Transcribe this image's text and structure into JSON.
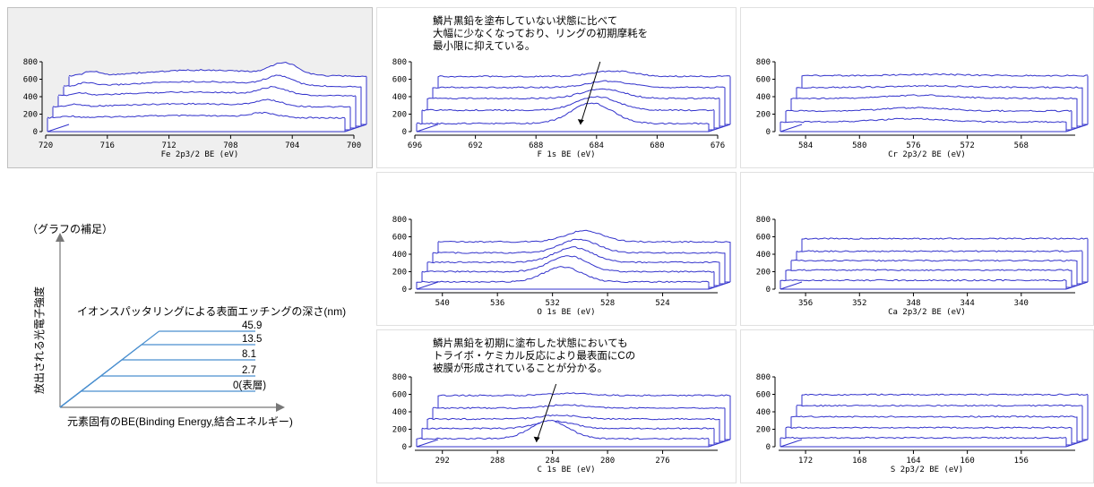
{
  "colors": {
    "line": "#3333cc",
    "axis": "#000000",
    "panel_bg": "#efefef",
    "panel_border": "#c0c0c0",
    "guide_line": "#4a8fcf",
    "guide_axis": "#777777"
  },
  "y_ticks": [
    "800",
    "600",
    "400",
    "200",
    "0"
  ],
  "chart_data": [
    {
      "type": "line",
      "id": "fe",
      "xlabel": "Fe 2p3/2  BE (eV)",
      "x_ticks": [
        "720",
        "716",
        "712",
        "708",
        "704",
        "700"
      ],
      "xlim": [
        720,
        700
      ],
      "ylim": [
        0,
        800
      ],
      "peak": 705.5,
      "base": [
        150,
        290,
        430,
        550,
        680
      ],
      "amp": [
        55,
        75,
        95,
        115,
        145
      ],
      "shape": "fe",
      "annotation": []
    },
    {
      "type": "line",
      "id": "f1s",
      "xlabel": "F 1s  BE (eV)",
      "x_ticks": [
        "696",
        "692",
        "688",
        "684",
        "680",
        "676"
      ],
      "xlim": [
        696,
        676
      ],
      "ylim": [
        0,
        800
      ],
      "peak": 684,
      "base": [
        80,
        250,
        400,
        540,
        680
      ],
      "amp": [
        260,
        170,
        120,
        80,
        70
      ],
      "shape": "peak",
      "annotation": [
        "鱗片黒鉛を塗布していない状態に比べて",
        "大幅に少なくなっており、リングの初期摩耗を",
        "最小限に抑えている。"
      ]
    },
    {
      "type": "line",
      "id": "cr",
      "xlabel": "Cr 2p3/2  BE (eV)",
      "x_ticks": [
        "584",
        "580",
        "576",
        "572",
        "568"
      ],
      "xlim": [
        586,
        564
      ],
      "ylim": [
        0,
        800
      ],
      "peak": 576,
      "base": [
        100,
        240,
        400,
        540,
        690
      ],
      "amp": [
        40,
        40,
        40,
        20,
        15
      ],
      "shape": "broad",
      "annotation": []
    },
    {
      "type": "line",
      "id": "o1s",
      "xlabel": "O 1s  BE (eV)",
      "x_ticks": [
        "540",
        "536",
        "532",
        "528",
        "524"
      ],
      "xlim": [
        542,
        520
      ],
      "ylim": [
        0,
        800
      ],
      "peak": 531,
      "base": [
        70,
        200,
        320,
        440,
        580
      ],
      "amp": [
        190,
        200,
        190,
        170,
        140
      ],
      "shape": "peak",
      "annotation": []
    },
    {
      "type": "line",
      "id": "ca",
      "xlabel": "Ca 2p3/2  BE (eV)",
      "x_ticks": [
        "356",
        "352",
        "348",
        "344",
        "340"
      ],
      "xlim": [
        358,
        336
      ],
      "ylim": [
        0,
        800
      ],
      "peak": 348,
      "base": [
        90,
        220,
        340,
        460,
        620
      ],
      "amp": [
        0,
        0,
        0,
        0,
        0
      ],
      "shape": "flat",
      "annotation": []
    },
    {
      "type": "line",
      "id": "c1s",
      "xlabel": "C 1s  BE (eV)",
      "x_ticks": [
        "292",
        "288",
        "284",
        "280",
        "276"
      ],
      "xlim": [
        294,
        272
      ],
      "ylim": [
        0,
        800
      ],
      "peak": 284,
      "base": [
        80,
        210,
        330,
        470,
        630
      ],
      "amp": [
        230,
        90,
        50,
        40,
        30
      ],
      "shape": "peak",
      "annotation": [
        "鱗片黒鉛を初期に塗布した状態においても",
        "トライボ・ケミカル反応により最表面にCの",
        "被膜が形成されていることが分かる。"
      ]
    },
    {
      "type": "line",
      "id": "s",
      "xlabel": "S 2p3/2  BE (eV)",
      "x_ticks": [
        "172",
        "168",
        "164",
        "160",
        "156"
      ],
      "xlim": [
        174,
        152
      ],
      "ylim": [
        0,
        800
      ],
      "peak": 164,
      "base": [
        90,
        220,
        360,
        500,
        640
      ],
      "amp": [
        0,
        0,
        0,
        0,
        0
      ],
      "shape": "flat",
      "annotation": []
    }
  ],
  "guide": {
    "title": "（グラフの補足）",
    "y_axis_label": "放出される光電子強度",
    "depth_title": "イオンスパッタリングによる表面エッチングの深さ(nm)",
    "depths": [
      "45.9",
      "13.5",
      "8.1",
      "2.7",
      "0(表層)"
    ],
    "x_axis_label": "元素固有のBE(Binding Energy,結合エネルギー)"
  }
}
